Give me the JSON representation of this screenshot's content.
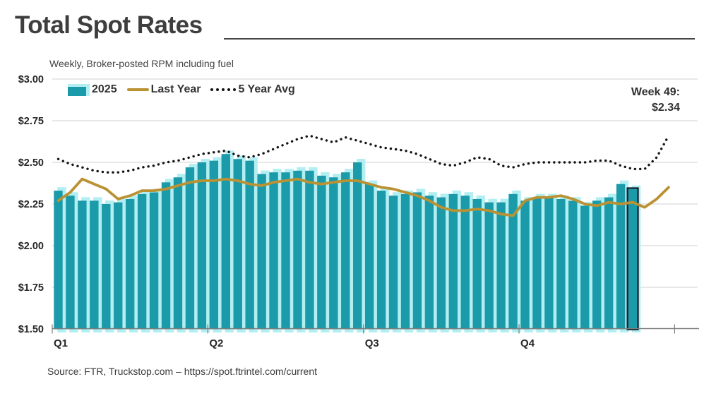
{
  "title": "Total Spot Rates",
  "subtitle": "Weekly, Broker-posted RPM including fuel",
  "source": "Source: FTR, Truckstop.com – https://spot.ftrintel.com/current",
  "callout": {
    "line1": "Week 49:",
    "line2": "$2.34"
  },
  "legend": {
    "items": [
      {
        "label": "2025",
        "swatch": "bar"
      },
      {
        "label": "Last Year",
        "swatch": "line"
      },
      {
        "label": "5 Year Avg",
        "swatch": "dotted"
      }
    ]
  },
  "colors": {
    "bar_teal": "#1B9AA9",
    "bar_echo": "#B3EFF2",
    "last_year_gold": "#BA9233",
    "five_year_dots": "#141414",
    "grid": "#d9d9d9",
    "axis": "#7c7c7c",
    "highlight_outline": "#12222e",
    "text_dark": "#3e3e3e"
  },
  "chart_data": {
    "type": "bar",
    "title": "Total Spot Rates",
    "subtitle": "Weekly, Broker-posted RPM including fuel",
    "x_unit": "week",
    "ylim": [
      1.5,
      3.0
    ],
    "grid": true,
    "legend_position": "top-left",
    "y_ticks": [
      {
        "label": "$3.00",
        "value": 3.0
      },
      {
        "label": "$2.75",
        "value": 2.75
      },
      {
        "label": "$2.50",
        "value": 2.5
      },
      {
        "label": "$2.25",
        "value": 2.25
      },
      {
        "label": "$2.00",
        "value": 2.0
      },
      {
        "label": "$1.75",
        "value": 1.75
      },
      {
        "label": "$1.50",
        "value": 1.5
      }
    ],
    "x_axis": {
      "labels": [
        "Q1",
        "Q2",
        "Q3",
        "Q4"
      ],
      "tick_week_boundaries": [
        0,
        13,
        26,
        39,
        52
      ]
    },
    "series": [
      {
        "name": "2025",
        "type": "bar",
        "values": [
          2.33,
          2.3,
          2.27,
          2.27,
          2.25,
          2.26,
          2.28,
          2.31,
          2.32,
          2.38,
          2.41,
          2.47,
          2.5,
          2.51,
          2.55,
          2.52,
          2.51,
          2.43,
          2.44,
          2.44,
          2.45,
          2.45,
          2.42,
          2.41,
          2.44,
          2.5,
          2.37,
          2.33,
          2.3,
          2.31,
          2.32,
          2.3,
          2.29,
          2.31,
          2.3,
          2.28,
          2.26,
          2.26,
          2.31,
          2.27,
          2.29,
          2.29,
          2.28,
          2.27,
          2.24,
          2.27,
          2.29,
          2.37,
          2.34
        ]
      },
      {
        "name": "Last Year",
        "type": "line",
        "values": [
          2.27,
          2.32,
          2.4,
          2.37,
          2.34,
          2.28,
          2.3,
          2.33,
          2.33,
          2.34,
          2.36,
          2.38,
          2.39,
          2.39,
          2.4,
          2.39,
          2.37,
          2.36,
          2.38,
          2.39,
          2.4,
          2.38,
          2.37,
          2.38,
          2.39,
          2.39,
          2.37,
          2.35,
          2.34,
          2.32,
          2.3,
          2.27,
          2.23,
          2.21,
          2.21,
          2.22,
          2.21,
          2.19,
          2.18,
          2.27,
          2.29,
          2.29,
          2.3,
          2.28,
          2.25,
          2.24,
          2.26,
          2.25,
          2.26,
          2.23,
          2.28,
          2.35
        ]
      },
      {
        "name": "5 Year Avg",
        "type": "dotted_line",
        "values": [
          2.52,
          2.49,
          2.47,
          2.45,
          2.44,
          2.44,
          2.45,
          2.47,
          2.48,
          2.5,
          2.51,
          2.53,
          2.55,
          2.56,
          2.57,
          2.54,
          2.53,
          2.55,
          2.58,
          2.61,
          2.64,
          2.66,
          2.64,
          2.62,
          2.65,
          2.63,
          2.61,
          2.59,
          2.58,
          2.57,
          2.55,
          2.52,
          2.49,
          2.48,
          2.5,
          2.53,
          2.52,
          2.48,
          2.47,
          2.49,
          2.5,
          2.5,
          2.5,
          2.5,
          2.5,
          2.51,
          2.51,
          2.48,
          2.46,
          2.46,
          2.53,
          2.66
        ]
      }
    ],
    "highlight": {
      "series": "2025",
      "week": 49,
      "value": 2.34,
      "label": "Week 49: $2.34"
    }
  }
}
